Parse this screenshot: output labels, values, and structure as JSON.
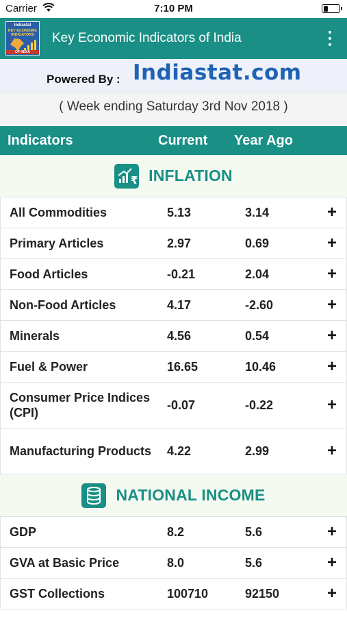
{
  "status": {
    "carrier": "Carrier",
    "time": "7:10 PM",
    "battery_level": 0.3
  },
  "app": {
    "title": "Key Economic Indicators of India",
    "logo_line1": "Indiastat",
    "logo_line2a": "KEY ECONOMIC",
    "logo_line2b": "INDICATORS",
    "logo_line3": "OF INDIA"
  },
  "powered": {
    "label": "Powered By :",
    "brand": "Indiastat.com"
  },
  "week": {
    "text": "( Week ending  Saturday 3rd Nov 2018 )"
  },
  "columns": {
    "indicators": "Indicators",
    "current": "Current",
    "year_ago": "Year Ago"
  },
  "sections": [
    {
      "title": "INFLATION",
      "icon": "inflation-chart-icon",
      "rows": [
        {
          "name": "All Commodities",
          "current": "5.13",
          "year_ago": "3.14"
        },
        {
          "name": "Primary Articles",
          "current": "2.97",
          "year_ago": "0.69"
        },
        {
          "name": "Food Articles",
          "current": "-0.21",
          "year_ago": "2.04"
        },
        {
          "name": "Non-Food Articles",
          "current": "4.17",
          "year_ago": "-2.60"
        },
        {
          "name": "Minerals",
          "current": "4.56",
          "year_ago": "0.54"
        },
        {
          "name": "Fuel & Power",
          "current": "16.65",
          "year_ago": "10.46"
        },
        {
          "name": "Consumer Price Indices (CPI)",
          "current": "-0.07",
          "year_ago": "-0.22"
        },
        {
          "name": "Manufacturing Products",
          "current": "4.22",
          "year_ago": "2.99"
        }
      ]
    },
    {
      "title": "NATIONAL INCOME",
      "icon": "coins-icon",
      "rows": [
        {
          "name": "GDP",
          "current": "8.2",
          "year_ago": "5.6"
        },
        {
          "name": "GVA at Basic Price",
          "current": "8.0",
          "year_ago": "5.6"
        },
        {
          "name": "GST Collections",
          "current": "100710",
          "year_ago": "92150"
        }
      ]
    }
  ],
  "expand_symbol": "+"
}
